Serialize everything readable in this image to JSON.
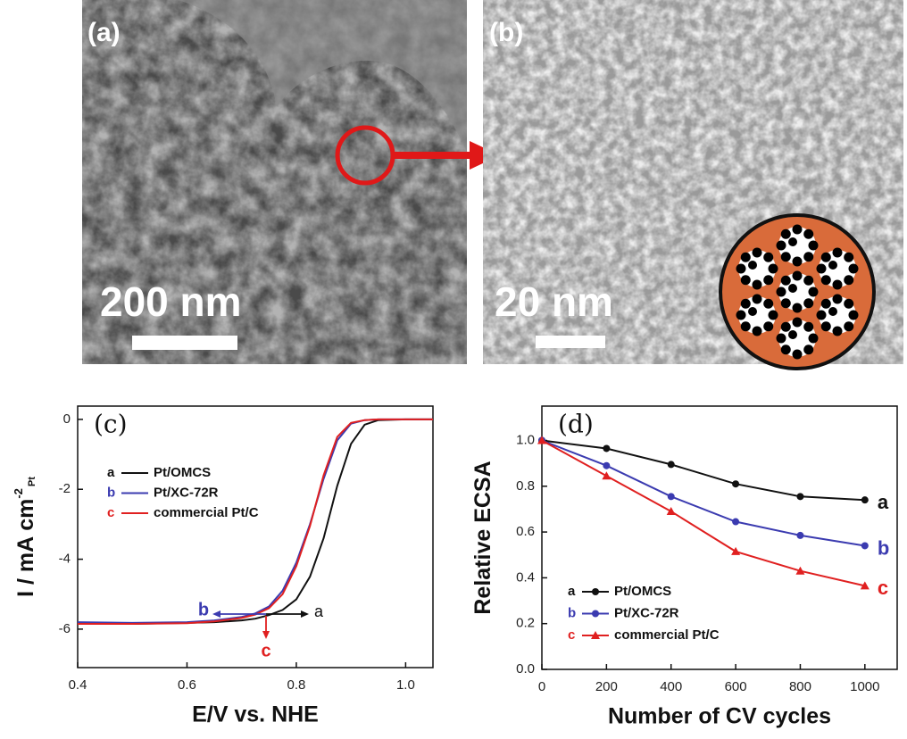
{
  "panels": [
    {
      "label": "(a)",
      "scale_bar": "200 nm"
    },
    {
      "label": "(b)",
      "scale_bar": "20 nm"
    }
  ],
  "chart_data": [
    {
      "type": "line",
      "panel_label": "(c)",
      "xlabel": "E/V vs. NHE",
      "ylabel": {
        "text": "I / mA cm",
        "sup": "-2",
        "sub": "Pt"
      },
      "x": [
        0.4,
        0.5,
        0.6,
        0.65,
        0.7,
        0.725,
        0.75,
        0.775,
        0.8,
        0.825,
        0.85,
        0.875,
        0.9,
        0.925,
        0.95,
        1.0,
        1.05
      ],
      "series": [
        {
          "label": "a",
          "name": "Pt/OMCS",
          "color": "#111111",
          "values": [
            -5.85,
            -5.85,
            -5.82,
            -5.8,
            -5.75,
            -5.7,
            -5.6,
            -5.45,
            -5.15,
            -4.5,
            -3.4,
            -1.9,
            -0.7,
            -0.15,
            -0.02,
            0,
            0
          ]
        },
        {
          "label": "b",
          "name": "Pt/XC-72R",
          "color": "#3b3bb0",
          "values": [
            -5.8,
            -5.82,
            -5.8,
            -5.75,
            -5.65,
            -5.55,
            -5.35,
            -4.9,
            -4.1,
            -3.0,
            -1.7,
            -0.6,
            -0.12,
            -0.02,
            0,
            0,
            0
          ]
        },
        {
          "label": "c",
          "name": "commercial Pt/C",
          "color": "#e02020",
          "values": [
            -5.85,
            -5.85,
            -5.83,
            -5.78,
            -5.68,
            -5.58,
            -5.4,
            -5.0,
            -4.2,
            -3.05,
            -1.6,
            -0.5,
            -0.1,
            -0.02,
            0,
            0,
            0
          ]
        }
      ],
      "xlim": [
        0.4,
        1.05
      ],
      "xticks": [
        0.4,
        0.6,
        0.8,
        {
          "value": 1.0,
          "label": "1.0"
        }
      ],
      "ylim": [
        -7.1,
        0.38
      ],
      "yticks": [
        0,
        -2,
        -4,
        -6
      ]
    },
    {
      "type": "line",
      "panel_label": "(d)",
      "xlabel": "Number of CV cycles",
      "ylabel": {
        "text": "Relative ECSA"
      },
      "x": [
        0,
        200,
        400,
        600,
        800,
        1000
      ],
      "series": [
        {
          "label": "a",
          "name": "Pt/OMCS",
          "color": "#111111",
          "marker": "circle",
          "values": [
            1,
            0.965,
            0.895,
            0.81,
            0.755,
            0.74
          ]
        },
        {
          "label": "b",
          "name": "Pt/XC-72R",
          "color": "#3b3bb0",
          "marker": "circle",
          "values": [
            1,
            0.89,
            0.755,
            0.645,
            0.585,
            0.54
          ]
        },
        {
          "label": "c",
          "name": "commercial Pt/C",
          "color": "#e02020",
          "marker": "triangle",
          "values": [
            1,
            0.845,
            0.69,
            0.515,
            0.43,
            0.365
          ]
        }
      ],
      "xlim": [
        0,
        1100
      ],
      "xticks": [
        0,
        200,
        400,
        600,
        800,
        1000
      ],
      "ylim": [
        0,
        1.15
      ],
      "yticks": [
        {
          "value": 0,
          "label": "0.0"
        },
        0.2,
        0.4,
        0.6,
        0.8,
        {
          "value": 1,
          "label": "1.0"
        }
      ]
    }
  ]
}
